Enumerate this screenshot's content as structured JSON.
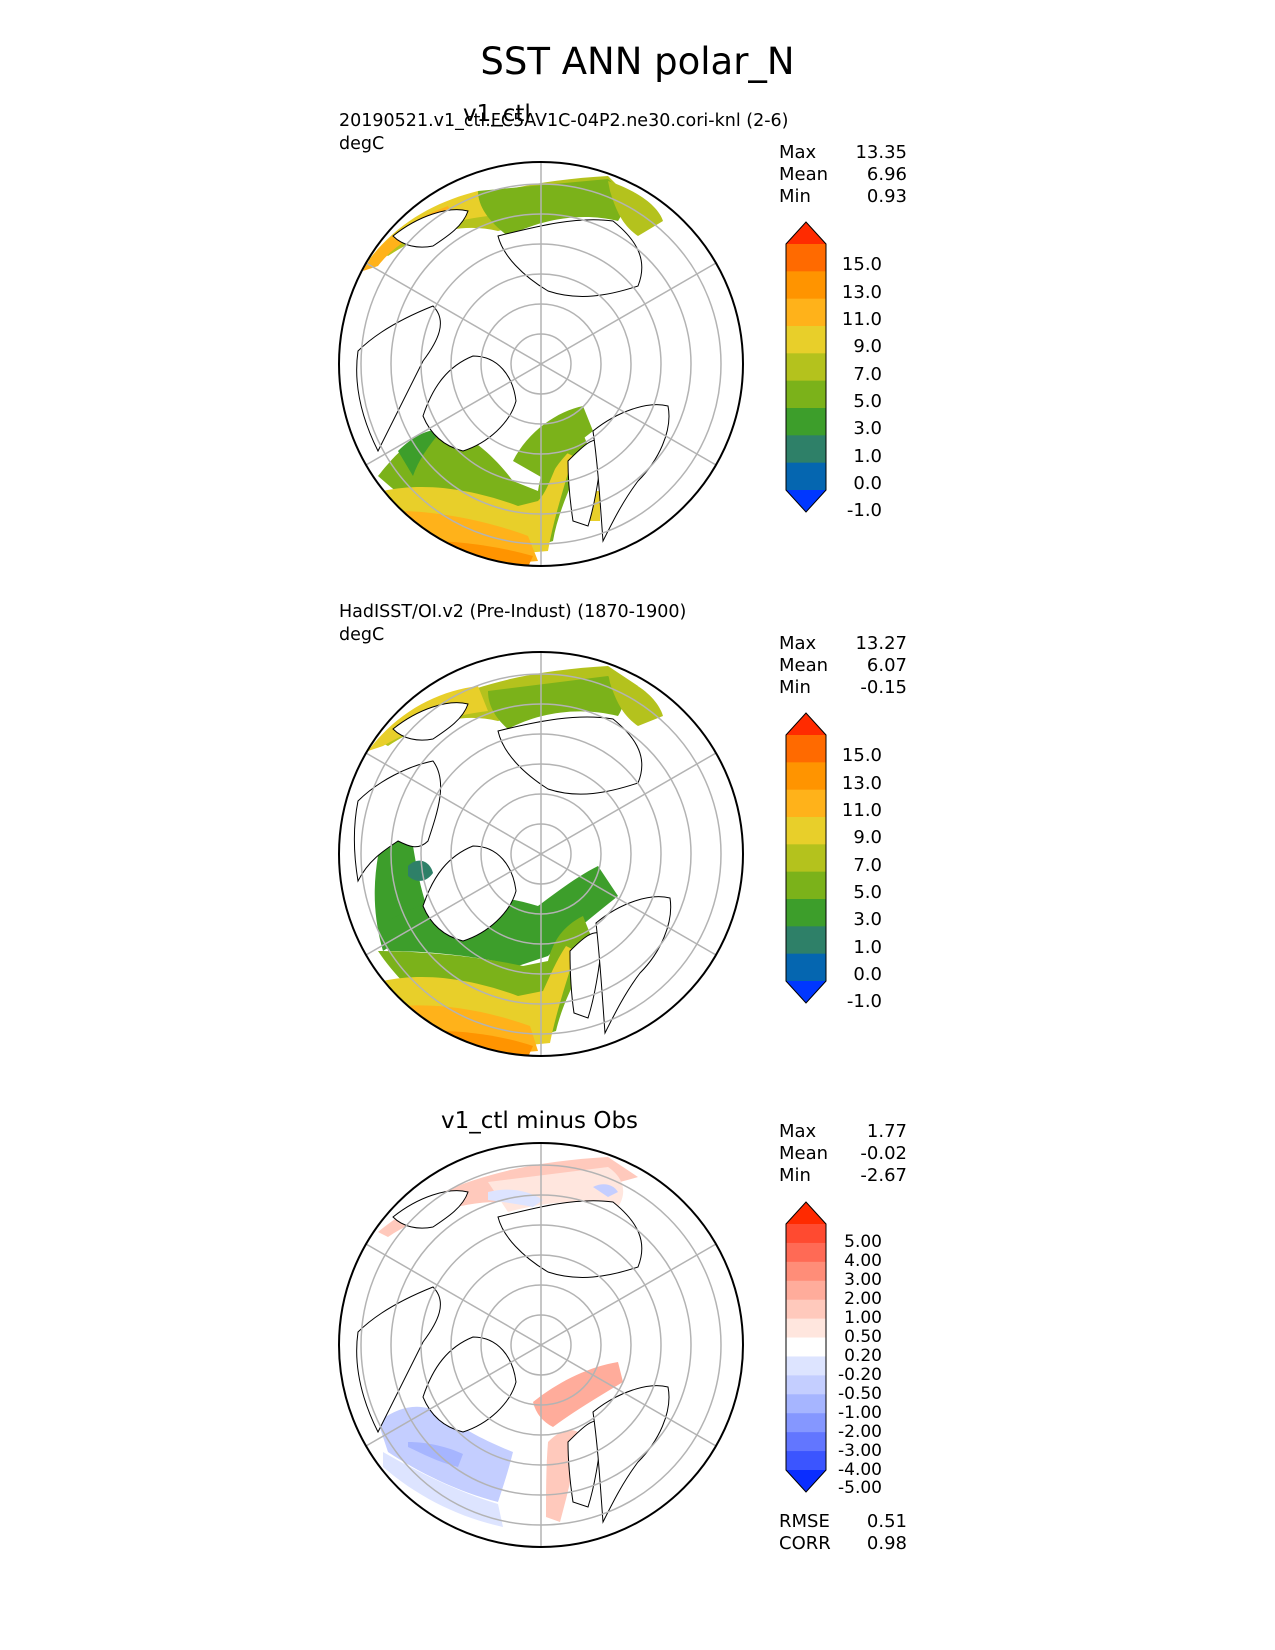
{
  "title": "SST ANN polar_N",
  "panels": [
    {
      "id": "test",
      "title": "v1_ctl",
      "left_label": "20190521.v1_ctl.FC5AV1C-04P2.ne30.cori-knl (2-6)",
      "units": "degC",
      "stats": [
        {
          "label": "Max",
          "value": "13.35"
        },
        {
          "label": "Mean",
          "value": "6.96"
        },
        {
          "label": "Min",
          "value": "0.93"
        }
      ]
    },
    {
      "id": "ref",
      "title": "",
      "left_label": "HadISST/OI.v2 (Pre-Indust) (1870-1900)",
      "units": "degC",
      "stats": [
        {
          "label": "Max",
          "value": "13.27"
        },
        {
          "label": "Mean",
          "value": "6.07"
        },
        {
          "label": "Min",
          "value": "-0.15"
        }
      ]
    },
    {
      "id": "diff",
      "title": "v1_ctl minus Obs",
      "left_label": "",
      "units": "",
      "stats": [
        {
          "label": "Max",
          "value": "1.77"
        },
        {
          "label": "Mean",
          "value": "-0.02"
        },
        {
          "label": "Min",
          "value": "-2.67"
        }
      ],
      "metrics": [
        {
          "label": "RMSE",
          "value": "0.51"
        },
        {
          "label": "CORR",
          "value": "0.98"
        }
      ]
    }
  ],
  "colorbar_field": {
    "labels": [
      "15.0",
      "13.0",
      "11.0",
      "9.0",
      "7.0",
      "5.0",
      "3.0",
      "1.0",
      "0.0",
      "-1.0"
    ],
    "colors": [
      "#ff2b00",
      "#ff6a00",
      "#ff9400",
      "#ffb21a",
      "#e8cf2a",
      "#b4c21d",
      "#7bb21a",
      "#3d9e2b",
      "#2e8068",
      "#0566b0",
      "#0037ff"
    ]
  },
  "colorbar_diff": {
    "labels": [
      "5.00",
      "4.00",
      "3.00",
      "2.00",
      "1.00",
      "0.50",
      "0.20",
      "-0.20",
      "-0.50",
      "-1.00",
      "-2.00",
      "-3.00",
      "-4.00",
      "-5.00"
    ],
    "colors": [
      "#ff2a00",
      "#ff4a30",
      "#ff6a55",
      "#ff8d78",
      "#ffac9b",
      "#ffc9bc",
      "#ffe6de",
      "#ffffff",
      "#dde4ff",
      "#c4ceff",
      "#a6b5ff",
      "#8597ff",
      "#6276ff",
      "#3b55ff",
      "#0a2dff"
    ]
  },
  "map_colors": {
    "land_outline": "#000000",
    "grid": "#b3b3b3",
    "field_zones": [
      "#b4c21d",
      "#e8cf2a",
      "#ffb21a",
      "#ff9400",
      "#7bb21a",
      "#3d9e2b",
      "#2e8068"
    ],
    "diff_zones": [
      "#ffc9bc",
      "#ffe6de",
      "#c4ceff",
      "#dde4ff",
      "#ffac9b",
      "#a6b5ff"
    ]
  }
}
